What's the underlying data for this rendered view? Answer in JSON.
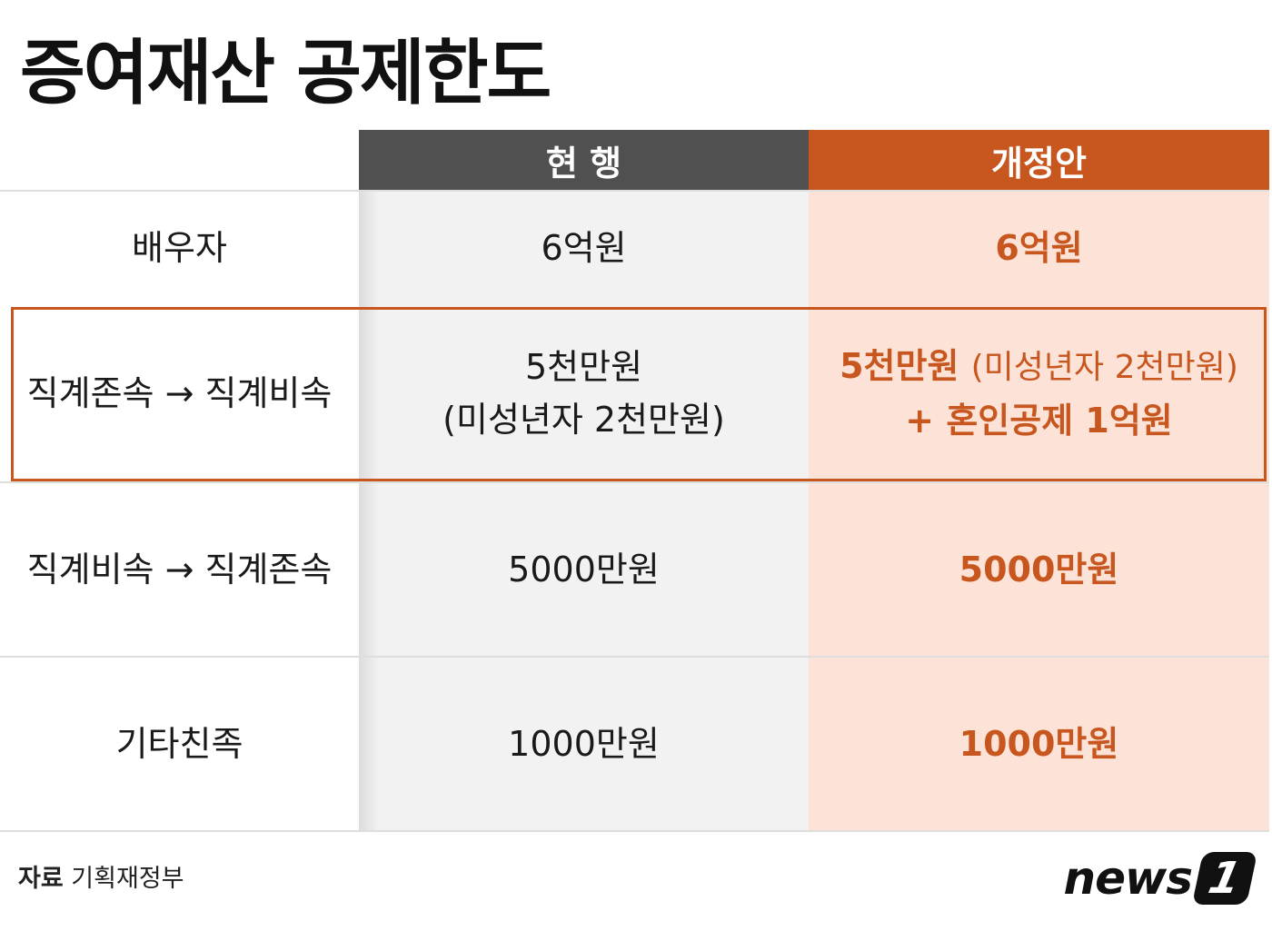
{
  "header": {
    "title": "증여재산 공제한도"
  },
  "table": {
    "columns": [
      "현 행",
      "개정안"
    ],
    "rows": [
      {
        "label": "배우자",
        "current": [
          "6억원"
        ],
        "revised": [
          "6억원"
        ]
      },
      {
        "label": "직계존속 → 직계비속",
        "current": [
          "5천만원",
          "(미성년자 2천만원)"
        ],
        "revised": [
          "5천만원",
          "(미성년자 2천만원)",
          "+ 혼인공제 1억원"
        ]
      },
      {
        "label": "직계비속 → 직계존속",
        "current": [
          "5000만원"
        ],
        "revised": [
          "5000만원"
        ]
      },
      {
        "label": "기타친족",
        "current": [
          "1000만원"
        ],
        "revised": [
          "1000만원"
        ]
      }
    ]
  },
  "footer": {
    "source_label": "자료",
    "source": "기획재정부",
    "logo": {
      "text": "news",
      "mark": "1"
    }
  }
}
